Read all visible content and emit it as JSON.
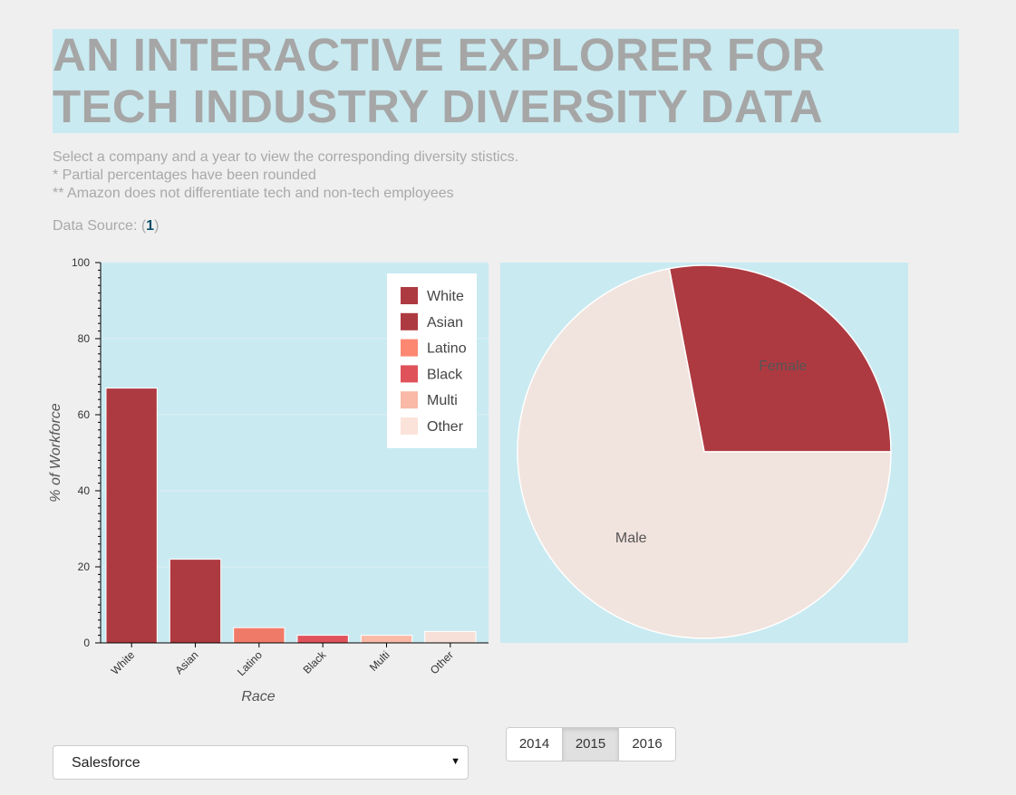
{
  "header": {
    "title": "AN INTERACTIVE EXPLORER FOR TECH INDUSTRY DIVERSITY DATA",
    "desc_line1": "Select a company and a year to view the corresponding diversity stistics.",
    "desc_line2": "* Partial percentages have been rounded",
    "desc_line3": "** Amazon does not differentiate tech and non-tech employees",
    "source_prefix": "Data Source: (",
    "source_link": "1",
    "source_suffix": ")"
  },
  "controls": {
    "company_selected": "Salesforce",
    "caret": "▼",
    "years": [
      "2014",
      "2015",
      "2016"
    ],
    "active_year": "2015"
  },
  "colors": {
    "plot_bg": "#c9eaf1",
    "page_bg": "#efefef",
    "title": "#a6a6a6",
    "link": "#0b4f6c"
  },
  "chart_data": [
    {
      "type": "bar",
      "categories": [
        "White",
        "Asian",
        "Latino",
        "Black",
        "Multi",
        "Other"
      ],
      "values": [
        67,
        22,
        4,
        2,
        2,
        3
      ],
      "colors": [
        "#ae3a41",
        "#ae3a41",
        "#f07a68",
        "#e0525a",
        "#f9b9a6",
        "#f6e0d8"
      ],
      "xlabel": "Race",
      "ylabel": "% of Workforce",
      "ylim": [
        0,
        100
      ],
      "yticks": [
        0,
        20,
        40,
        60,
        80,
        100
      ],
      "legend": {
        "placement": "top-right",
        "items": [
          {
            "label": "White",
            "color": "#ae3a41"
          },
          {
            "label": "Asian",
            "color": "#ae3a41"
          },
          {
            "label": "Latino",
            "color": "#fd8872"
          },
          {
            "label": "Black",
            "color": "#e0525a"
          },
          {
            "label": "Multi",
            "color": "#f9b9a6"
          },
          {
            "label": "Other",
            "color": "#fbe3da"
          }
        ]
      },
      "grid": true
    },
    {
      "type": "pie",
      "categories": [
        "Female",
        "Male"
      ],
      "values": [
        28,
        72
      ],
      "colors": [
        "#ae3a41",
        "#f1e3dd"
      ]
    }
  ]
}
